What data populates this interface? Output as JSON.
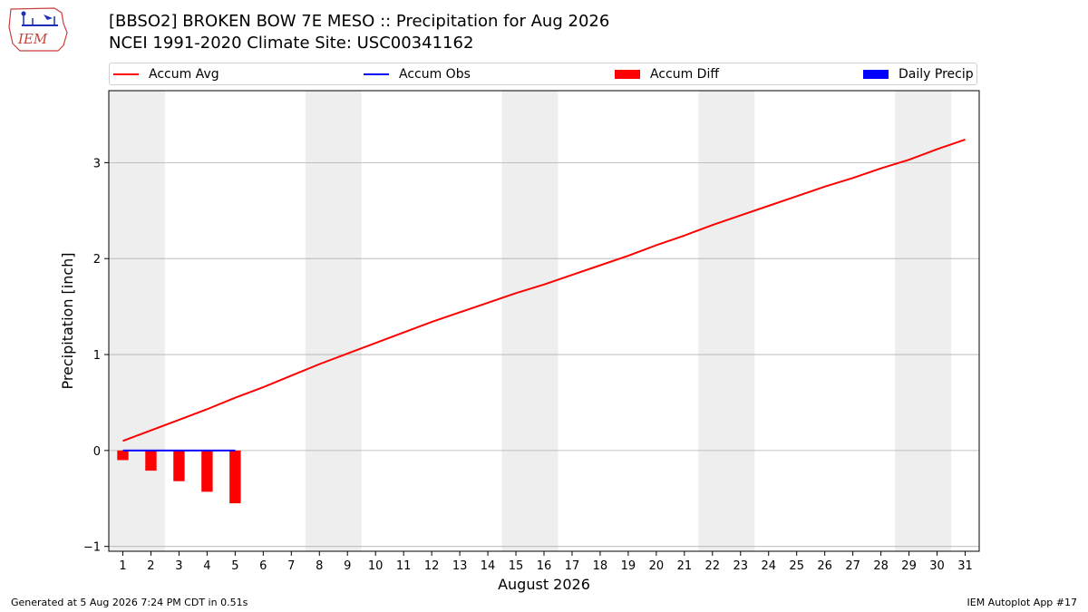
{
  "header": {
    "logo_text": "IEM",
    "title_line1": "[BBSO2] BROKEN BOW 7E MESO :: Precipitation for Aug 2026",
    "title_line2": "NCEI 1991-2020 Climate Site: USC00341162"
  },
  "footer": {
    "generated": "Generated at 5 Aug 2026 7:24 PM CDT in 0.51s",
    "app": "IEM Autoplot App #17"
  },
  "colors": {
    "accum_avg": "#ff0000",
    "accum_obs": "#0000ff",
    "accum_diff": "#ff0000",
    "daily_precip": "#0000ff",
    "weekend_shade": "#eeeeee",
    "grid": "#b0b0b0"
  },
  "chart_data": {
    "type": "line",
    "xlabel": "August 2026",
    "ylabel": "Precipitation [inch]",
    "ylim": [
      -1.05,
      3.75
    ],
    "xlim": [
      0.5,
      31.5
    ],
    "yticks": [
      -1,
      0,
      1,
      2,
      3
    ],
    "ytick_labels": [
      "−1",
      "0",
      "1",
      "2",
      "3"
    ],
    "xticks": [
      1,
      2,
      3,
      4,
      5,
      6,
      7,
      8,
      9,
      10,
      11,
      12,
      13,
      14,
      15,
      16,
      17,
      18,
      19,
      20,
      21,
      22,
      23,
      24,
      25,
      26,
      27,
      28,
      29,
      30,
      31
    ],
    "grid": "horizontal",
    "legend_position": "top",
    "legend": [
      "Accum Avg",
      "Accum Obs",
      "Accum Diff",
      "Daily Precip"
    ],
    "weekend_spans": [
      [
        0.5,
        2.5
      ],
      [
        7.5,
        9.5
      ],
      [
        14.5,
        16.5
      ],
      [
        21.5,
        23.5
      ],
      [
        28.5,
        30.5
      ]
    ],
    "series": [
      {
        "name": "Accum Avg",
        "kind": "line",
        "x": [
          1,
          2,
          3,
          4,
          5,
          6,
          7,
          8,
          9,
          10,
          11,
          12,
          13,
          14,
          15,
          16,
          17,
          18,
          19,
          20,
          21,
          22,
          23,
          24,
          25,
          26,
          27,
          28,
          29,
          30,
          31
        ],
        "values": [
          0.1,
          0.21,
          0.32,
          0.43,
          0.55,
          0.66,
          0.78,
          0.9,
          1.01,
          1.12,
          1.23,
          1.34,
          1.44,
          1.54,
          1.64,
          1.73,
          1.83,
          1.93,
          2.03,
          2.14,
          2.24,
          2.35,
          2.45,
          2.55,
          2.65,
          2.75,
          2.84,
          2.94,
          3.03,
          3.14,
          3.24
        ]
      },
      {
        "name": "Accum Obs",
        "kind": "line",
        "x": [
          1,
          2,
          3,
          4,
          5
        ],
        "values": [
          0,
          0,
          0,
          0,
          0
        ]
      },
      {
        "name": "Accum Diff",
        "kind": "bar",
        "x": [
          1,
          2,
          3,
          4,
          5
        ],
        "values": [
          -0.1,
          -0.21,
          -0.32,
          -0.43,
          -0.55
        ]
      },
      {
        "name": "Daily Precip",
        "kind": "bar",
        "x": [
          1,
          2,
          3,
          4,
          5
        ],
        "values": [
          0,
          0,
          0,
          0,
          0
        ]
      }
    ]
  }
}
